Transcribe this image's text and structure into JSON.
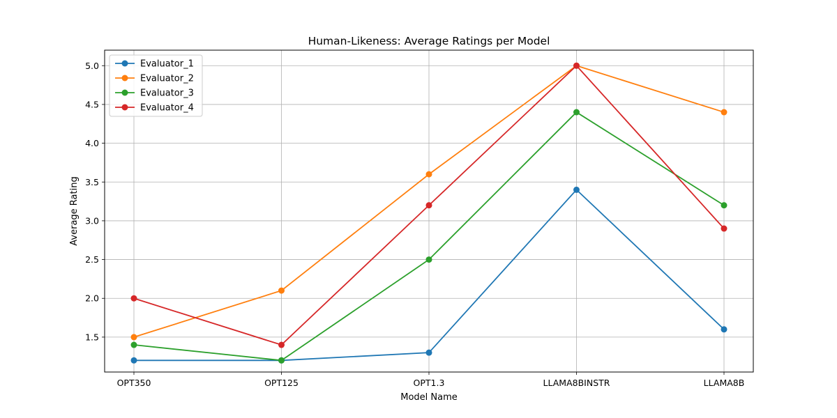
{
  "chart_data": {
    "type": "line",
    "title": "Human-Likeness: Average Ratings per Model",
    "xlabel": "Model Name",
    "ylabel": "Average Rating",
    "categories": [
      "OPT350",
      "OPT125",
      "OPT1.3",
      "LLAMA8BINSTR",
      "LLAMA8B"
    ],
    "ylim": [
      1.05,
      5.2
    ],
    "yticks": [
      1.5,
      2.0,
      2.5,
      3.0,
      3.5,
      4.0,
      4.5,
      5.0
    ],
    "yticks_labels": [
      "1.5",
      "2.0",
      "2.5",
      "3.0",
      "3.5",
      "4.0",
      "4.5",
      "5.0"
    ],
    "grid": true,
    "legend_position": "top-left",
    "markers": "circle",
    "series": [
      {
        "name": "Evaluator_1",
        "color": "#1f77b4",
        "values": [
          1.2,
          1.2,
          1.3,
          3.4,
          1.6
        ]
      },
      {
        "name": "Evaluator_2",
        "color": "#ff7f0e",
        "values": [
          1.5,
          2.1,
          3.6,
          5.0,
          4.4
        ]
      },
      {
        "name": "Evaluator_3",
        "color": "#2ca02c",
        "values": [
          1.4,
          1.2,
          2.5,
          4.4,
          3.2
        ]
      },
      {
        "name": "Evaluator_4",
        "color": "#d62728",
        "values": [
          2.0,
          1.4,
          3.2,
          5.0,
          2.9
        ]
      }
    ]
  }
}
